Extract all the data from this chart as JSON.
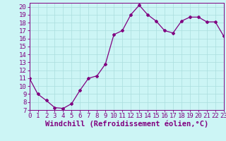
{
  "x": [
    0,
    1,
    2,
    3,
    4,
    5,
    6,
    7,
    8,
    9,
    10,
    11,
    12,
    13,
    14,
    15,
    16,
    17,
    18,
    19,
    20,
    21,
    22,
    23
  ],
  "y": [
    11,
    9,
    8.2,
    7.3,
    7.2,
    7.8,
    9.5,
    11,
    11.3,
    12.8,
    16.5,
    17,
    19,
    20.2,
    19,
    18.2,
    17,
    16.7,
    18.2,
    18.7,
    18.7,
    18.1,
    18.1,
    16.3
  ],
  "line_color": "#800080",
  "marker": "D",
  "marker_size": 2,
  "bg_color": "#ccf5f5",
  "grid_color": "#aadddd",
  "xlabel": "Windchill (Refroidissement éolien,°C)",
  "ylim": [
    7,
    20.5
  ],
  "xlim": [
    0,
    23
  ],
  "yticks": [
    7,
    8,
    9,
    10,
    11,
    12,
    13,
    14,
    15,
    16,
    17,
    18,
    19,
    20
  ],
  "xticks": [
    0,
    1,
    2,
    3,
    4,
    5,
    6,
    7,
    8,
    9,
    10,
    11,
    12,
    13,
    14,
    15,
    16,
    17,
    18,
    19,
    20,
    21,
    22,
    23
  ],
  "tick_color": "#800080",
  "xlabel_fontsize": 7.5,
  "tick_fontsize": 6.5,
  "xlabel_bold": true
}
